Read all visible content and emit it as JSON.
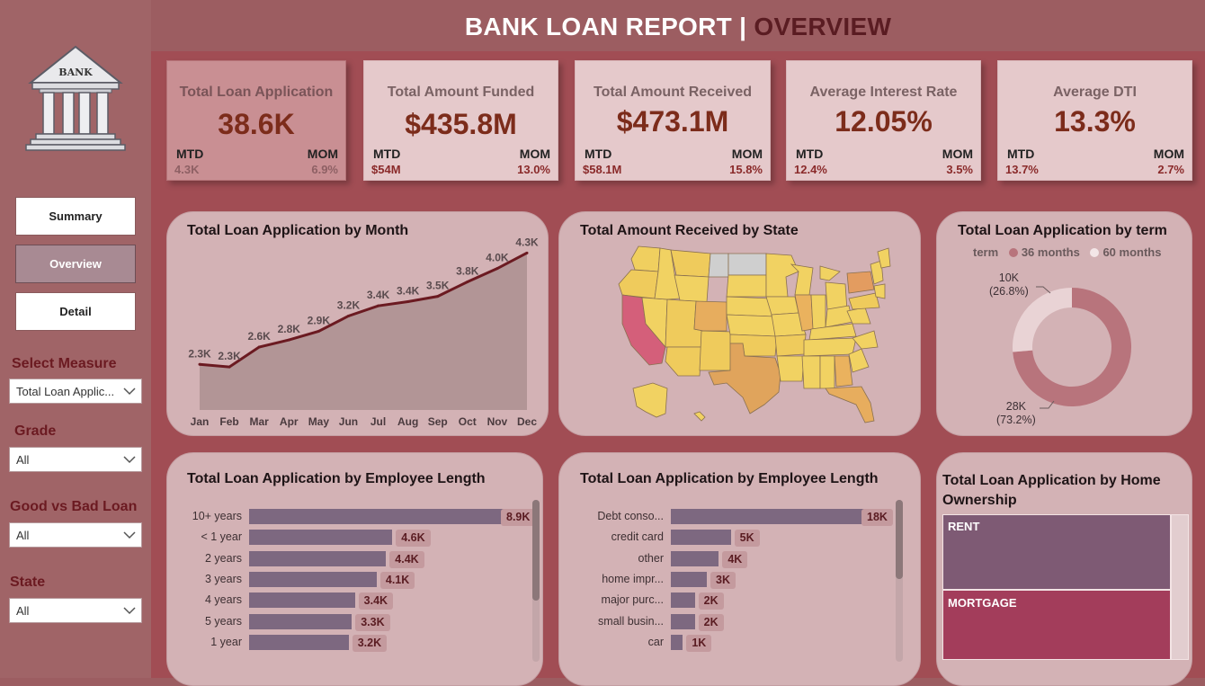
{
  "header": {
    "title_main": "BANK LOAN REPORT |",
    "title_accent": "OVERVIEW"
  },
  "logo": {
    "text": "BANK"
  },
  "nav": {
    "summary": "Summary",
    "overview": "Overview",
    "detail": "Detail",
    "active": "overview"
  },
  "filters": {
    "measure": {
      "label": "Select Measure",
      "value": "Total Loan Applic..."
    },
    "grade": {
      "label": "Grade",
      "value": "All"
    },
    "good_bad": {
      "label": "Good vs Bad Loan",
      "value": "All"
    },
    "state": {
      "label": "State",
      "value": "All"
    }
  },
  "kpis": [
    {
      "title": "Total Loan Application",
      "value": "38.6K",
      "mtd_label": "MTD",
      "mom_label": "MOM",
      "mtd": "4.3K",
      "mom": "6.9%"
    },
    {
      "title": "Total Amount Funded",
      "value": "$435.8M",
      "mtd_label": "MTD",
      "mom_label": "MOM",
      "mtd": "$54M",
      "mom": "13.0%"
    },
    {
      "title": "Total Amount Received",
      "value": "$473.1M",
      "mtd_label": "MTD",
      "mom_label": "MOM",
      "mtd": "$58.1M",
      "mom": "15.8%"
    },
    {
      "title": "Average Interest Rate",
      "value": "12.05%",
      "mtd_label": "MTD",
      "mom_label": "MOM",
      "mtd": "12.4%",
      "mom": "3.5%"
    },
    {
      "title": "Average DTI",
      "value": "13.3%",
      "mtd_label": "MTD",
      "mom_label": "MOM",
      "mtd": "13.7%",
      "mom": "2.7%"
    }
  ],
  "panels": {
    "month": "Total Loan Application by Month",
    "state": "Total Amount Received by State",
    "term": "Total Loan Application by term",
    "emp": "Total Loan Application by Employee Length",
    "purpose": "Total Loan Application by Employee Length",
    "home": "Total Loan Application by Home Ownership"
  },
  "chart_data": [
    {
      "type": "area",
      "title": "Total Loan Application by Month",
      "categories": [
        "Jan",
        "Feb",
        "Mar",
        "Apr",
        "May",
        "Jun",
        "Jul",
        "Aug",
        "Sep",
        "Oct",
        "Nov",
        "Dec"
      ],
      "values": [
        2.3,
        2.3,
        2.6,
        2.8,
        2.9,
        3.2,
        3.4,
        3.4,
        3.5,
        3.8,
        4.0,
        4.3
      ],
      "labels": [
        "2.3K",
        "2.3K",
        "2.6K",
        "2.8K",
        "2.9K",
        "3.2K",
        "3.4K",
        "3.4K",
        "3.5K",
        "3.8K",
        "4.0K",
        "4.3K"
      ],
      "value_points": [
        2317,
        2271,
        2627,
        2755,
        2911,
        3184,
        3366,
        3441,
        3536,
        3796,
        4035,
        4314
      ],
      "ylim": [
        1.5,
        4.4
      ],
      "line_color": "#6b1a21",
      "fill_color": "#b29596"
    },
    {
      "type": "pie",
      "title": "Total Loan Application by term",
      "legend_title": "term",
      "series": [
        {
          "name": "36 months",
          "value": 28,
          "label": "28K",
          "pct": "(73.2%)",
          "color": "#b8747c"
        },
        {
          "name": "60 months",
          "value": 10,
          "label": "10K",
          "pct": "(26.8%)",
          "color": "#e9d3d5"
        }
      ]
    },
    {
      "type": "bar",
      "title": "Total Loan Application by Employee Length",
      "categories": [
        "10+ years",
        "< 1 year",
        "2 years",
        "3 years",
        "4 years",
        "5 years",
        "1 year"
      ],
      "values": [
        8.9,
        4.6,
        4.4,
        4.1,
        3.4,
        3.3,
        3.2
      ],
      "labels": [
        "8.9K",
        "4.6K",
        "4.4K",
        "4.1K",
        "3.4K",
        "3.3K",
        "3.2K"
      ]
    },
    {
      "type": "bar",
      "title": "Total Loan Application by Employee Length",
      "categories": [
        "Debt conso...",
        "credit card",
        "other",
        "home impr...",
        "major purc...",
        "small busin...",
        "car"
      ],
      "values": [
        18,
        5,
        4,
        3,
        2,
        2,
        1
      ],
      "labels": [
        "18K",
        "5K",
        "4K",
        "3K",
        "2K",
        "2K",
        "1K"
      ]
    },
    {
      "type": "heatmap",
      "title": "Total Loan Application by Home Ownership",
      "categories": [
        "RENT",
        "MORTGAGE"
      ],
      "colors": [
        "#7e5a74",
        "#a33d5b"
      ]
    }
  ],
  "colors": {
    "bar": "#7d6880",
    "value_pill": "#c49a9e",
    "map_light": "#f1d262",
    "map_mid": "#e5a55d",
    "map_high": "#d46079"
  },
  "icons": [
    "bank-building-icon",
    "chevron-down-icon"
  ]
}
